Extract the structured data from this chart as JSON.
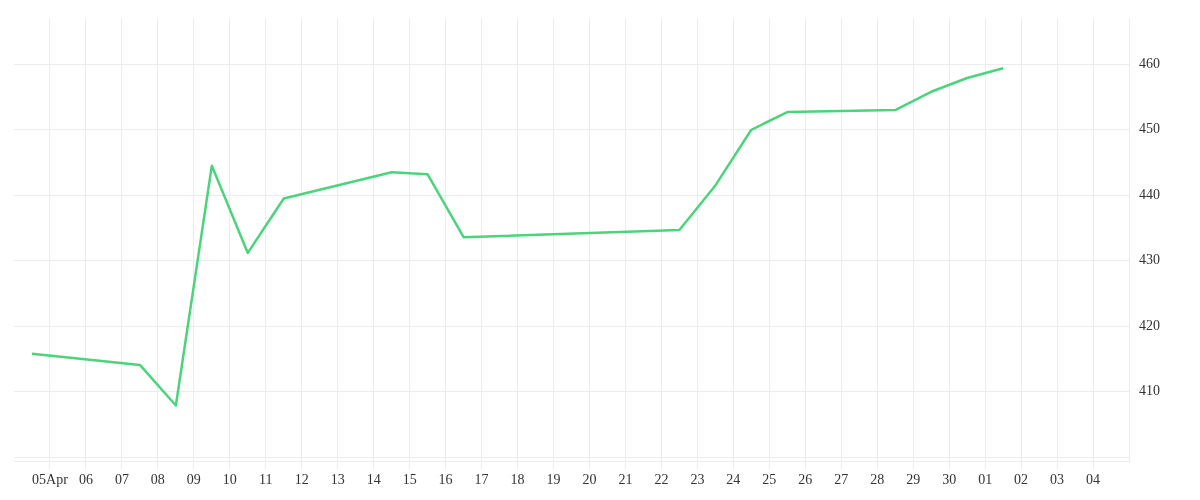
{
  "chart_data": {
    "type": "line",
    "series": [
      {
        "color": "#4cd47c",
        "x": [
          "--04-04T12:00",
          "--04-07T12:00",
          "--04-08T12:00",
          "--04-09T12:00",
          "--04-10T12:00",
          "--04-11T12:00",
          "--04-14T12:00",
          "--04-15T12:00",
          "--04-16T12:00",
          "--04-22T12:00",
          "--04-23T12:00",
          "--04-24T12:00",
          "--04-25T12:00",
          "--04-28T12:00",
          "--04-29T12:00",
          "--04-30T12:00",
          "--05-01T12:00"
        ],
        "values": [
          415.8,
          414.1,
          407.9,
          444.5,
          431.2,
          439.5,
          443.5,
          443.2,
          433.6,
          434.7,
          441.5,
          450,
          452.7,
          453,
          455.8,
          457.9,
          459.4
        ]
      }
    ],
    "xlim": [
      "--04-04",
      "--05-05"
    ],
    "xticks": [
      {
        "value": "--04-05",
        "label": "05Apr"
      },
      {
        "value": "--04-06",
        "label": "06"
      },
      {
        "value": "--04-07",
        "label": "07"
      },
      {
        "value": "--04-08",
        "label": "08"
      },
      {
        "value": "--04-09",
        "label": "09"
      },
      {
        "value": "--04-10",
        "label": "10"
      },
      {
        "value": "--04-11",
        "label": "11"
      },
      {
        "value": "--04-12",
        "label": "12"
      },
      {
        "value": "--04-13",
        "label": "13"
      },
      {
        "value": "--04-14",
        "label": "14"
      },
      {
        "value": "--04-15",
        "label": "15"
      },
      {
        "value": "--04-16",
        "label": "16"
      },
      {
        "value": "--04-17",
        "label": "17"
      },
      {
        "value": "--04-18",
        "label": "18"
      },
      {
        "value": "--04-19",
        "label": "19"
      },
      {
        "value": "--04-20",
        "label": "20"
      },
      {
        "value": "--04-21",
        "label": "21"
      },
      {
        "value": "--04-22",
        "label": "22"
      },
      {
        "value": "--04-23",
        "label": "23"
      },
      {
        "value": "--04-24",
        "label": "24"
      },
      {
        "value": "--04-25",
        "label": "25"
      },
      {
        "value": "--04-26",
        "label": "26"
      },
      {
        "value": "--04-27",
        "label": "27"
      },
      {
        "value": "--04-28",
        "label": "28"
      },
      {
        "value": "--04-29",
        "label": "29"
      },
      {
        "value": "--04-30",
        "label": "30"
      },
      {
        "value": "--05-01",
        "label": "01"
      },
      {
        "value": "--05-02",
        "label": "02"
      },
      {
        "value": "--05-03",
        "label": "03"
      },
      {
        "value": "--05-04",
        "label": "04"
      }
    ],
    "ylim": [
      399.4,
      467
    ],
    "yticks": [
      {
        "value": 400,
        "label": null
      },
      410,
      420,
      430,
      440,
      450,
      460
    ],
    "grid": true,
    "legend": false,
    "marker": "none",
    "line_style": "solid"
  }
}
